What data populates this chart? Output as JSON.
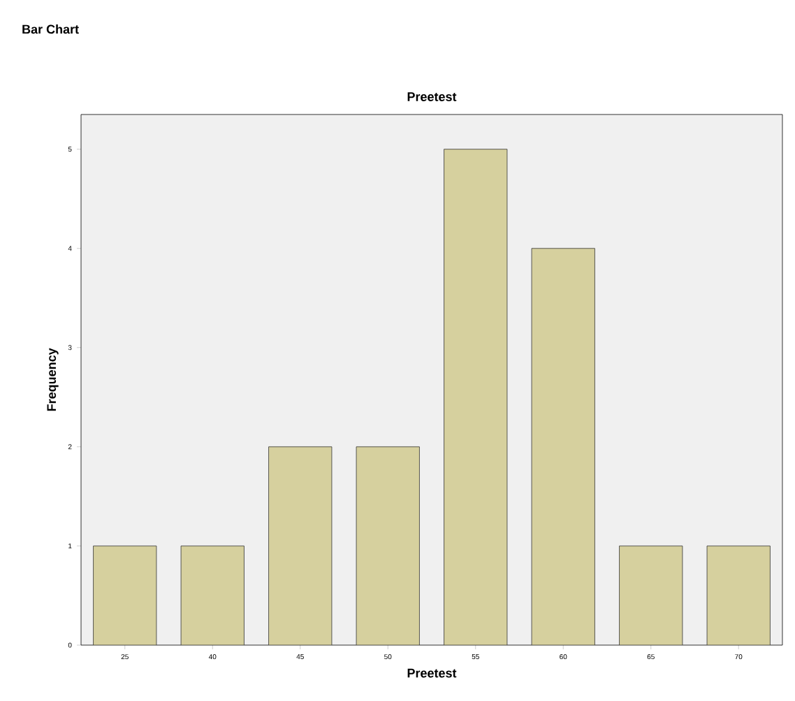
{
  "chart_data": {
    "type": "bar",
    "title": "Bar Chart",
    "subtitle": "Preetest",
    "xlabel": "Preetest",
    "ylabel": "Frequency",
    "categories": [
      "25",
      "40",
      "45",
      "50",
      "55",
      "60",
      "65",
      "70"
    ],
    "values": [
      1,
      1,
      2,
      2,
      5,
      4,
      1,
      1
    ],
    "color": "#d6d09e",
    "ylim": [
      0,
      5.35
    ],
    "yticks": [
      0,
      1,
      2,
      3,
      4,
      5
    ],
    "grid": false
  }
}
